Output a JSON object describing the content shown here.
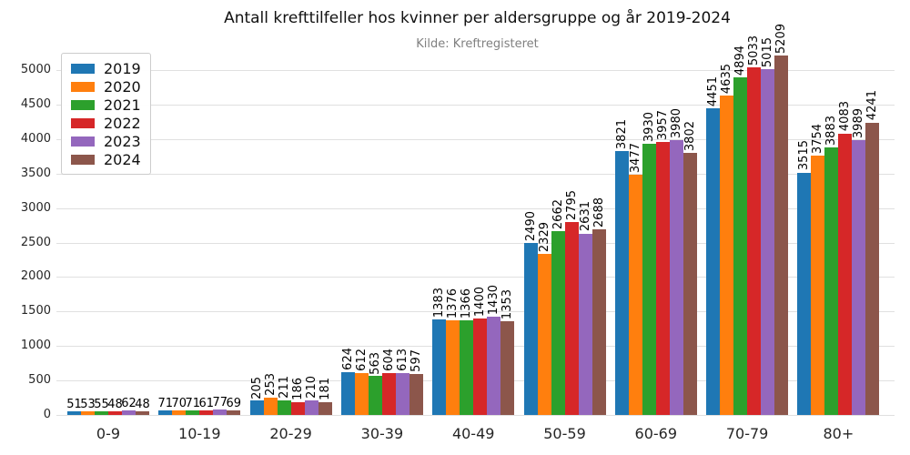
{
  "chart_data": {
    "type": "bar",
    "title": "Antall krefttilfeller hos kvinner per aldersgruppe og år 2019-2024",
    "subtitle": "Kilde: Kreftregisteret",
    "xlabel": "",
    "ylabel": "",
    "categories": [
      "0-9",
      "10-19",
      "20-29",
      "30-39",
      "40-49",
      "50-59",
      "60-69",
      "70-79",
      "80+"
    ],
    "series": [
      {
        "name": "2019",
        "color": "#1f77b4",
        "values": [
          51,
          71,
          205,
          624,
          1383,
          2490,
          3821,
          4451,
          3515
        ]
      },
      {
        "name": "2020",
        "color": "#ff7f0e",
        "values": [
          53,
          70,
          253,
          612,
          1376,
          2329,
          3477,
          4635,
          3754
        ]
      },
      {
        "name": "2021",
        "color": "#2ca02c",
        "values": [
          55,
          71,
          211,
          563,
          1366,
          2662,
          3930,
          4894,
          3883
        ]
      },
      {
        "name": "2022",
        "color": "#d62728",
        "values": [
          48,
          61,
          186,
          604,
          1400,
          2795,
          3957,
          5033,
          4083
        ]
      },
      {
        "name": "2023",
        "color": "#9467bd",
        "values": [
          62,
          77,
          210,
          613,
          1430,
          2631,
          3980,
          5015,
          3989
        ]
      },
      {
        "name": "2024",
        "color": "#8c564b",
        "values": [
          48,
          69,
          181,
          597,
          1353,
          2688,
          3802,
          5209,
          4241
        ]
      }
    ],
    "yticks": [
      0,
      500,
      1000,
      1500,
      2000,
      2500,
      3000,
      3500,
      4000,
      4500,
      5000
    ],
    "ylim": [
      0,
      5450
    ],
    "grid": true,
    "grid_color": "#e0e0e0",
    "background_color": "#ffffff",
    "legend_position": "upper left",
    "bar_labels": "shown above each bar; rotated 90° when value has 3+ digits"
  }
}
